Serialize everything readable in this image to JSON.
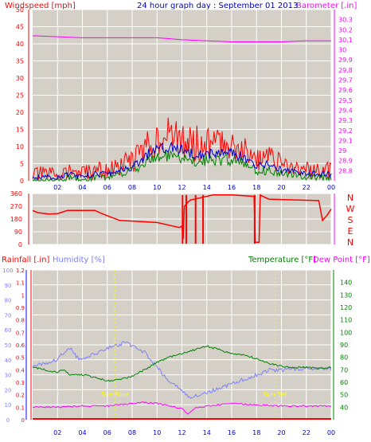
{
  "colors": {
    "background": "#ffffff",
    "plot_bg": "#d4d0c8",
    "grid": "#ffffff",
    "wind_gust": "#ff0000",
    "wind_avg": "#0000cc",
    "wind_low": "#008000",
    "barometer": "#ff00ff",
    "direction": "#ff0000",
    "rainfall": "#ff0000",
    "humidity": "#8080ff",
    "temperature": "#008000",
    "dew_point": "#ff00ff",
    "title": "#0000cc",
    "sun": "#ffff00"
  },
  "header": {
    "title": "24 hour graph day : September 01 2013"
  },
  "chart_data": [
    {
      "id": "wind_baro",
      "type": "line",
      "x": {
        "ticks": [
          "02",
          "04",
          "06",
          "08",
          "10",
          "12",
          "14",
          "16",
          "18",
          "20",
          "22",
          "00"
        ]
      },
      "y_left": {
        "label": "Windspeed [mph]",
        "min": 0,
        "max": 50,
        "ticks": [
          "0",
          "5",
          "10",
          "15",
          "20",
          "25",
          "30",
          "35",
          "40",
          "45",
          "50"
        ]
      },
      "y_right": {
        "label": "Barometer [.in]",
        "min": 28.7,
        "max": 30.4,
        "ticks": [
          "28.8",
          "28.9",
          "29",
          "29.1",
          "29.2",
          "29.3",
          "29.4",
          "29.5",
          "29.6",
          "29.7",
          "29.8",
          "29.9",
          "30",
          "30.1",
          "30.2",
          "30.3"
        ]
      },
      "series": [
        {
          "key": "gust",
          "axis": "left",
          "x": [
            0,
            1,
            2,
            3,
            4,
            5,
            6,
            7,
            8,
            9,
            10,
            11,
            12,
            13,
            14,
            15,
            16,
            17,
            18,
            19,
            20,
            21,
            22,
            23,
            24
          ],
          "values": [
            2,
            2,
            2,
            3,
            2,
            3,
            3,
            4,
            6,
            9,
            13,
            13,
            12,
            11,
            11,
            11,
            11,
            10,
            6,
            7,
            5,
            4,
            3,
            3,
            3
          ]
        },
        {
          "key": "avg",
          "axis": "left",
          "x": [
            0,
            1,
            2,
            3,
            4,
            5,
            6,
            7,
            8,
            9,
            10,
            11,
            12,
            13,
            14,
            15,
            16,
            17,
            18,
            19,
            20,
            21,
            22,
            23,
            24
          ],
          "values": [
            1,
            1,
            1,
            2,
            1,
            2,
            2,
            3,
            4,
            7,
            10,
            10,
            9,
            8,
            8,
            8,
            8,
            7,
            4,
            5,
            3,
            3,
            2,
            2,
            2
          ]
        },
        {
          "key": "low",
          "axis": "left",
          "x": [
            0,
            1,
            2,
            3,
            4,
            5,
            6,
            7,
            8,
            9,
            10,
            11,
            12,
            13,
            14,
            15,
            16,
            17,
            18,
            19,
            20,
            21,
            22,
            23,
            24
          ],
          "values": [
            0,
            0,
            0,
            1,
            0,
            1,
            1,
            2,
            3,
            5,
            7,
            7,
            6,
            6,
            6,
            6,
            6,
            5,
            3,
            3,
            2,
            2,
            1,
            1,
            1
          ]
        },
        {
          "key": "baro",
          "axis": "right",
          "x": [
            0,
            2,
            4,
            6,
            8,
            10,
            12,
            14,
            16,
            18,
            20,
            22,
            24
          ],
          "values": [
            30.14,
            30.13,
            30.12,
            30.12,
            30.12,
            30.12,
            30.1,
            30.09,
            30.08,
            30.08,
            30.08,
            30.09,
            30.09
          ]
        }
      ]
    },
    {
      "id": "wind_dir",
      "type": "line",
      "x": {
        "ticks": [
          "02",
          "04",
          "06",
          "08",
          "10",
          "12",
          "14",
          "16",
          "18",
          "20",
          "22",
          "00"
        ]
      },
      "y_left": {
        "min": 0,
        "max": 360,
        "ticks": [
          "0",
          "90",
          "180",
          "270",
          "360"
        ]
      },
      "y_right_labels": [
        "N",
        "W",
        "S",
        "E",
        "N"
      ],
      "series": [
        {
          "key": "dir",
          "x": [
            0,
            0.4,
            1.3,
            2,
            2.8,
            5,
            5.8,
            7,
            10,
            11.8,
            12,
            12.1,
            12.2,
            12.5,
            12.7,
            13,
            13.5,
            14.5,
            16,
            17.8,
            17.9,
            18.2,
            18.3,
            18.5,
            19,
            23,
            23.3,
            23.7,
            24
          ],
          "values": [
            240,
            225,
            215,
            218,
            240,
            240,
            210,
            170,
            155,
            120,
            130,
            40,
            270,
            300,
            315,
            320,
            330,
            350,
            350,
            340,
            15,
            15,
            350,
            340,
            320,
            310,
            170,
            210,
            250
          ]
        }
      ]
    },
    {
      "id": "temp_hum",
      "type": "line",
      "x": {
        "ticks": [
          "02",
          "04",
          "06",
          "08",
          "10",
          "12",
          "14",
          "16",
          "18",
          "20",
          "22",
          "00"
        ]
      },
      "y_rain": {
        "label": "Rainfall [.in]",
        "min": 0,
        "max": 1.2,
        "ticks": [
          "0",
          "0.1",
          "0.2",
          "0.3",
          "0.4",
          "0.5",
          "0.6",
          "0.7",
          "0.8",
          "0.9",
          "1",
          "1.1",
          "1.2"
        ]
      },
      "y_hum": {
        "label": "Humidity [%]",
        "min": 0,
        "max": 100,
        "ticks": [
          "0",
          "10",
          "20",
          "30",
          "40",
          "50",
          "60",
          "70",
          "80",
          "90",
          "100"
        ]
      },
      "y_temp": {
        "label": "Temperature [°F]",
        "min": 30,
        "max": 150,
        "ticks": [
          "40",
          "50",
          "60",
          "70",
          "80",
          "90",
          "100",
          "110",
          "120",
          "130",
          "140"
        ]
      },
      "dew_label": "Dew Point [°F]",
      "annotations": [
        {
          "text": "Sun Rise",
          "x": 6.6
        },
        {
          "text": "Sun Set",
          "x": 19.5
        }
      ],
      "series": [
        {
          "key": "hum",
          "axis": "hum",
          "x": [
            0,
            1,
            2,
            2.5,
            3,
            3.5,
            4,
            5,
            6,
            7,
            7.5,
            8,
            9,
            10,
            11,
            12,
            12.5,
            13,
            14,
            15,
            16,
            17,
            18,
            19,
            20,
            21,
            22,
            23,
            24
          ],
          "values": [
            35,
            38,
            40,
            45,
            48,
            42,
            40,
            44,
            48,
            50,
            52,
            49,
            45,
            35,
            25,
            20,
            15,
            16,
            18,
            21,
            24,
            27,
            30,
            33,
            33,
            34,
            34,
            35,
            34
          ]
        },
        {
          "key": "temp",
          "axis": "temp",
          "x": [
            0,
            1,
            2,
            2.5,
            3,
            4,
            5,
            6,
            7,
            8,
            9,
            10,
            11,
            12,
            13,
            14,
            15,
            16,
            17,
            18,
            19,
            20,
            21,
            22,
            23,
            24
          ],
          "values": [
            72,
            70,
            68,
            70,
            66,
            66,
            64,
            61,
            62,
            65,
            70,
            76,
            80,
            83,
            86,
            89,
            86,
            83,
            82,
            79,
            75,
            73,
            72,
            72,
            71,
            72
          ]
        },
        {
          "key": "dew",
          "axis": "temp",
          "x": [
            0,
            2,
            4,
            6,
            8,
            9,
            10,
            11,
            12,
            12.5,
            13,
            14,
            15,
            16,
            18,
            20,
            22,
            24
          ],
          "values": [
            40,
            40,
            41,
            41,
            43,
            44,
            43,
            41,
            39,
            34,
            39,
            41,
            42,
            43,
            42,
            41,
            41,
            41
          ]
        },
        {
          "key": "rain",
          "axis": "rain",
          "x": [
            0,
            24
          ],
          "values": [
            0,
            0
          ]
        }
      ]
    }
  ]
}
